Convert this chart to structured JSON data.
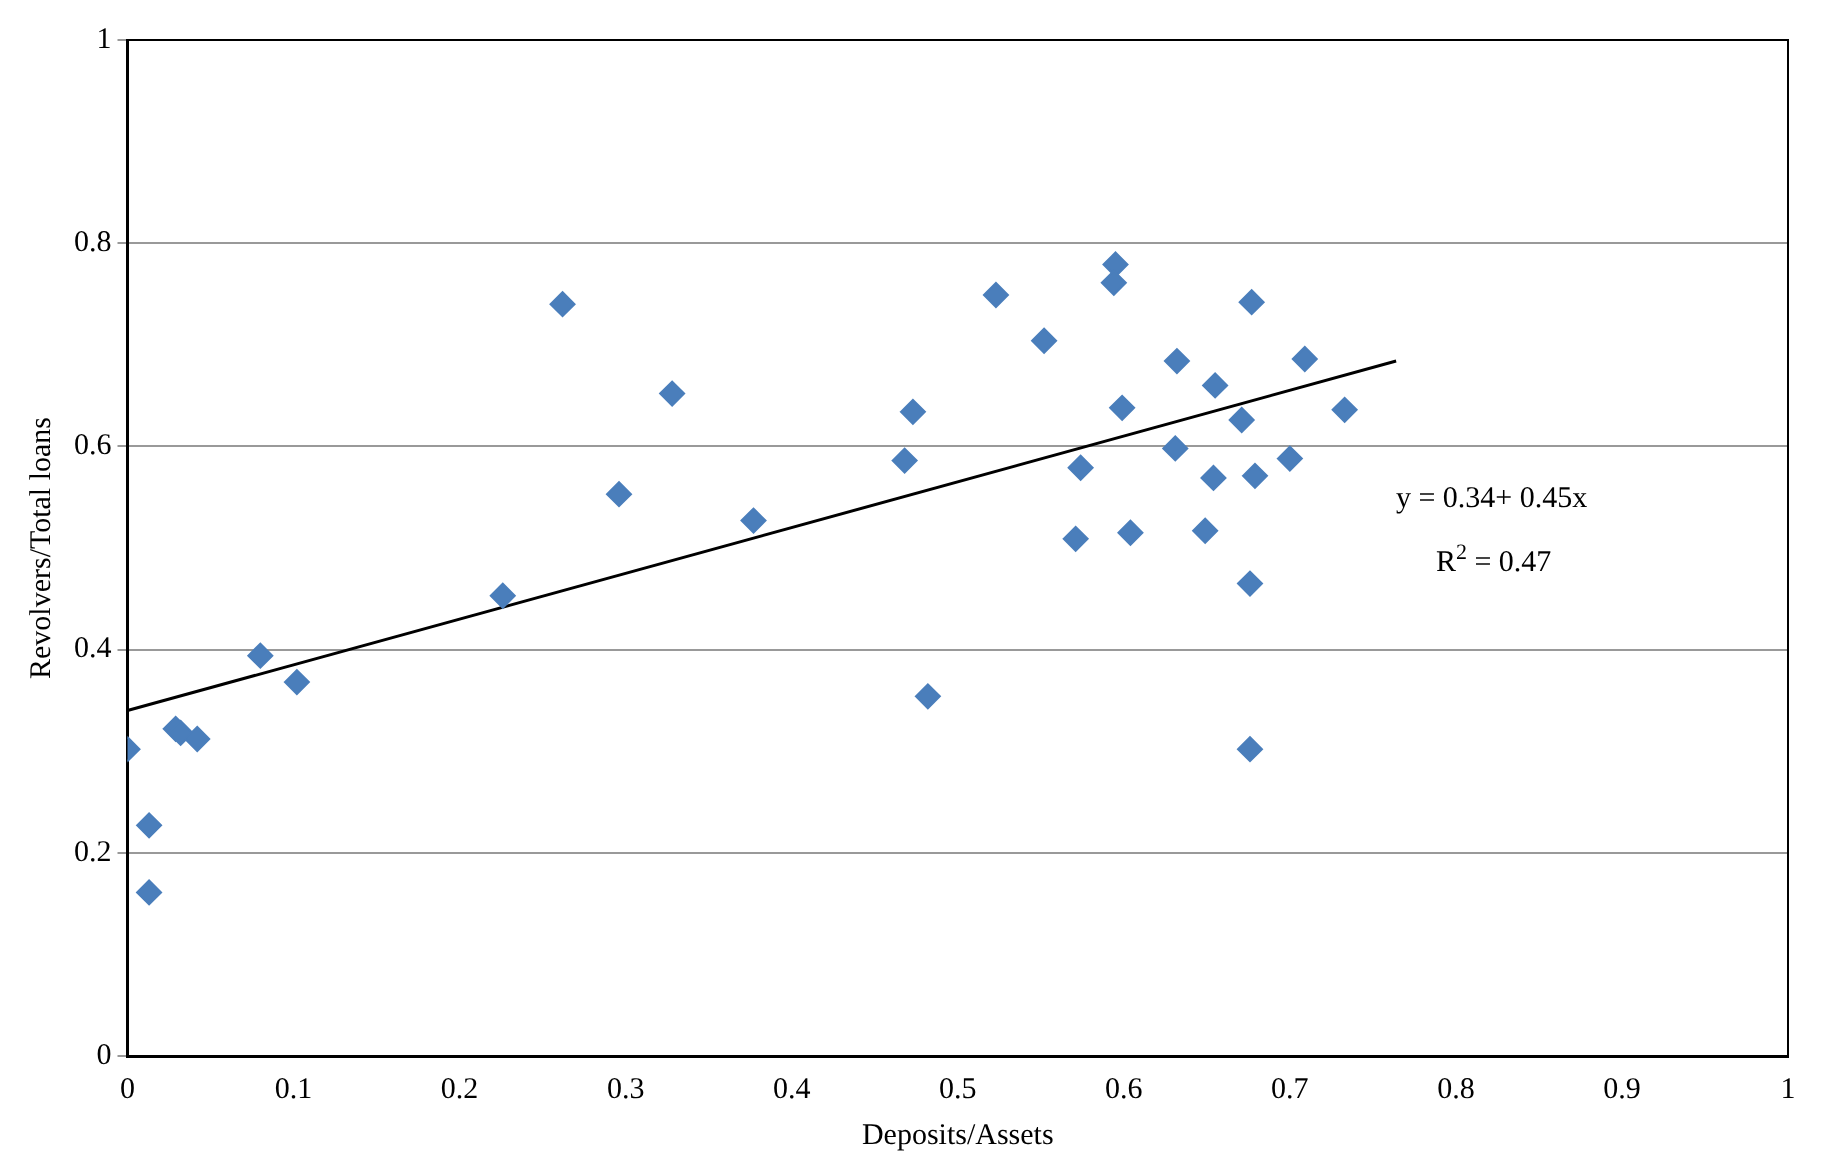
{
  "chart_data": {
    "type": "scatter",
    "xlabel": "Deposits/Assets",
    "ylabel": "Revolvers/Total loans",
    "x": [
      0,
      0.013,
      0.013,
      0.029,
      0.032,
      0.042,
      0.08,
      0.102,
      0.226,
      0.262,
      0.296,
      0.328,
      0.377,
      0.468,
      0.473,
      0.482,
      0.523,
      0.552,
      0.574,
      0.571,
      0.595,
      0.594,
      0.599,
      0.604,
      0.632,
      0.631,
      0.655,
      0.654,
      0.649,
      0.671,
      0.677,
      0.679,
      0.676,
      0.676,
      0.7,
      0.709,
      0.733
    ],
    "series": [
      {
        "color": "#4a7ebb",
        "marker": "diamond",
        "values": [
          0.302,
          0.227,
          0.161,
          0.322,
          0.318,
          0.312,
          0.394,
          0.368,
          0.453,
          0.74,
          0.553,
          0.652,
          0.527,
          0.586,
          0.634,
          0.354,
          0.749,
          0.704,
          0.579,
          0.509,
          0.779,
          0.761,
          0.638,
          0.515,
          0.684,
          0.598,
          0.66,
          0.569,
          0.517,
          0.626,
          0.742,
          0.571,
          0.465,
          0.302,
          0.588,
          0.686,
          0.636
        ]
      },
      {
        "type": "line",
        "color": "#000000",
        "marker": "none",
        "x": [
          0,
          0.764
        ],
        "values": [
          0.34,
          0.684
        ]
      }
    ],
    "annotations": [
      "y = 0.34+ 0.45x",
      "R$^{2}$ = 0.47"
    ],
    "xlim": [
      0,
      1
    ],
    "xticks": [
      0,
      0.1,
      0.2,
      0.3,
      0.4,
      0.5,
      0.6,
      0.7,
      0.8,
      0.9,
      1
    ],
    "ylim": [
      0,
      1
    ],
    "yticks": [
      0,
      0.2,
      0.4,
      0.6,
      0.8,
      1
    ],
    "grid": "y",
    "legend": false
  }
}
